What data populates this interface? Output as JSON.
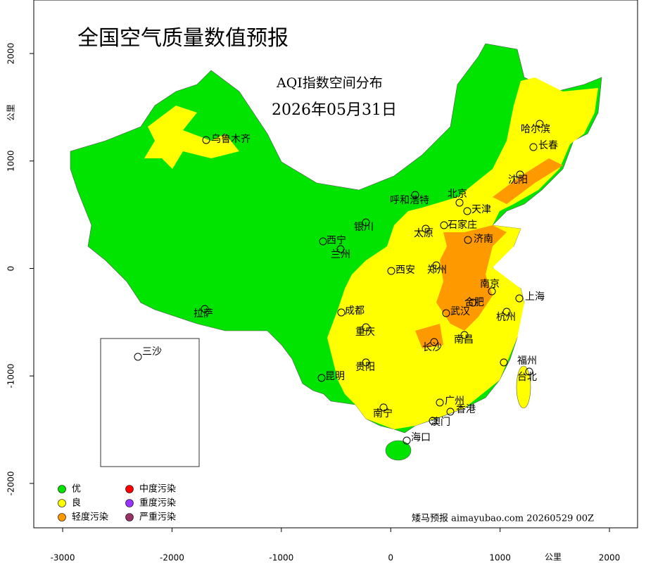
{
  "title": "全国空气质量数值预报",
  "subtitle": "AQI指数空间分布",
  "date": "2026年05月31日",
  "axes": {
    "xlim": [
      -3264,
      2257
    ],
    "ylim": [
      -2413,
      2498
    ],
    "xticks": [
      -3000,
      -2000,
      -1000,
      0,
      1000,
      2000
    ],
    "yticks": [
      -2000,
      -1000,
      0,
      1000,
      2000
    ],
    "xlabel": "公里",
    "ylabel": "公里"
  },
  "cities": [
    "乌鲁木齐",
    "哈尔滨",
    "长春",
    "沈阳",
    "呼和浩特",
    "北京",
    "天津",
    "银川",
    "石家庄",
    "太原",
    "西宁",
    "兰州",
    "济南",
    "西安",
    "郑州",
    "南京",
    "上海",
    "合肥",
    "拉萨",
    "成都",
    "武汉",
    "杭州",
    "重庆",
    "南昌",
    "长沙",
    "三沙",
    "福州",
    "贵阳",
    "台北",
    "昆明",
    "广州",
    "南宁",
    "香港",
    "澳门",
    "海口"
  ],
  "legend": [
    {
      "name": "优",
      "color": "#00e400"
    },
    {
      "name": "良",
      "color": "#ffff00"
    },
    {
      "name": "轻度污染",
      "color": "#ff9900"
    },
    {
      "name": "中度污染",
      "color": "#ff0000"
    },
    {
      "name": "重度污染",
      "color": "#9933ff"
    },
    {
      "name": "严重污染",
      "color": "#993366"
    }
  ],
  "footer": "矮马预报 aimayubao.com 20260529 00Z"
}
